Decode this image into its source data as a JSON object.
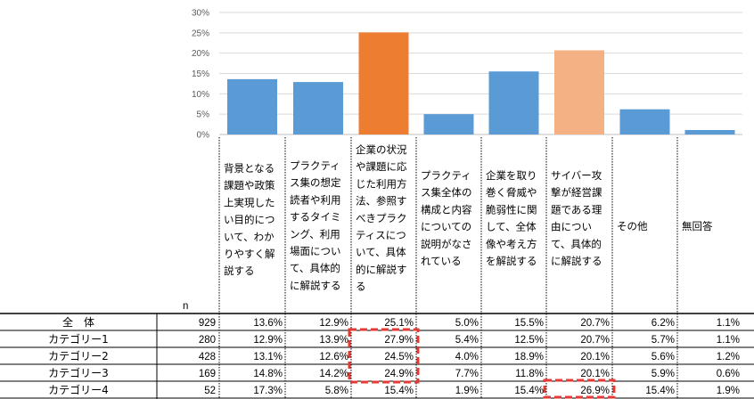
{
  "chart_data": {
    "type": "bar",
    "ylim": [
      0,
      30
    ],
    "yticks": [
      "0%",
      "5%",
      "10%",
      "15%",
      "20%",
      "25%",
      "30%"
    ],
    "grid": true,
    "categories": [
      [
        "背景となる",
        "課題や政策",
        "上実現した",
        "い目的につ",
        "いて、わか",
        "りやすく解",
        "説する"
      ],
      [
        "プラクティ",
        "ス集の想定",
        "読者や利用",
        "するタイミ",
        "ング、利用",
        "場面につい",
        "て、具体的",
        "に解説する"
      ],
      [
        "企業の状況",
        "や課題に応",
        "じた利用方",
        "法、参照す",
        "べきプラク",
        "ティスにつ",
        "いて、具体",
        "的に解説す",
        "る"
      ],
      [
        "プラクティ",
        "ス集全体の",
        "構成と内容",
        "についての",
        "説明がなさ",
        "れている"
      ],
      [
        "企業を取り",
        "巻く脅威や",
        "脆弱性に関",
        "して、全体",
        "像や考え方",
        "を解説する"
      ],
      [
        "サイバー攻",
        "撃が経営課",
        "題である理",
        "由につい",
        "て、具体的",
        "に解説する"
      ],
      [
        "その他"
      ],
      [
        "無回答"
      ]
    ],
    "values": [
      13.6,
      12.9,
      25.1,
      5.0,
      15.5,
      20.7,
      6.2,
      1.1
    ],
    "bar_colors": [
      "#5b9bd5",
      "#5b9bd5",
      "#ed7d31",
      "#5b9bd5",
      "#5b9bd5",
      "#f4b183",
      "#5b9bd5",
      "#5b9bd5"
    ],
    "n_label": "n",
    "table": {
      "rows": [
        {
          "name": "全　体",
          "n": "929",
          "values": [
            "13.6%",
            "12.9%",
            "25.1%",
            "5.0%",
            "15.5%",
            "20.7%",
            "6.2%",
            "1.1%"
          ]
        },
        {
          "name": "カテゴリー1",
          "n": "280",
          "values": [
            "12.9%",
            "13.9%",
            "27.9%",
            "5.4%",
            "12.5%",
            "20.7%",
            "5.7%",
            "1.1%"
          ]
        },
        {
          "name": "カテゴリー2",
          "n": "428",
          "values": [
            "13.1%",
            "12.6%",
            "24.5%",
            "4.0%",
            "18.9%",
            "20.1%",
            "5.6%",
            "1.2%"
          ]
        },
        {
          "name": "カテゴリー3",
          "n": "169",
          "values": [
            "14.8%",
            "14.2%",
            "24.9%",
            "7.7%",
            "11.8%",
            "20.1%",
            "5.9%",
            "0.6%"
          ]
        },
        {
          "name": "カテゴリー4",
          "n": "52",
          "values": [
            "17.3%",
            "5.8%",
            "15.4%",
            "1.9%",
            "15.4%",
            "26.9%",
            "15.4%",
            "1.9%"
          ]
        }
      ]
    },
    "highlights": [
      {
        "column": 2,
        "rows": [
          1,
          3
        ]
      },
      {
        "column": 5,
        "rows": [
          4,
          4
        ]
      }
    ]
  }
}
